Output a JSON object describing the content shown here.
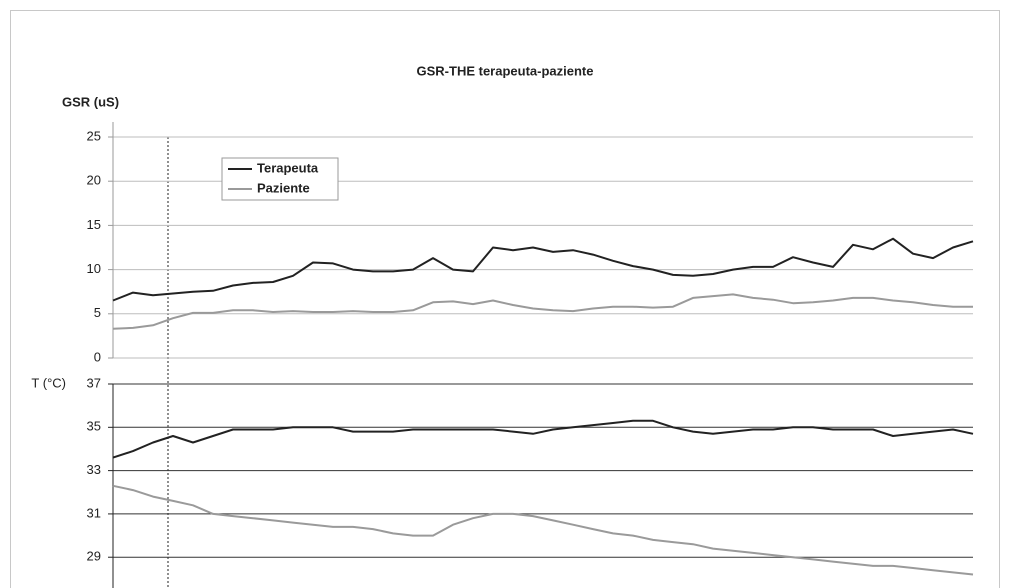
{
  "chart_data": [
    {
      "type": "line",
      "title": "GSR-THE terapeuta-paziente",
      "y_label": "GSR (uS)",
      "ylim": [
        0,
        25
      ],
      "yticks": [
        0,
        5,
        10,
        15,
        20,
        25
      ],
      "grid": true,
      "grid_color": "#bdbdbd",
      "legend": "upper-left",
      "series": [
        {
          "name": "Terapeuta",
          "color": "#222222",
          "values": [
            6.5,
            7.4,
            7.1,
            7.3,
            7.5,
            7.6,
            8.2,
            8.5,
            8.6,
            9.3,
            10.8,
            10.7,
            10.0,
            9.8,
            9.8,
            10.0,
            11.3,
            10.0,
            9.8,
            12.5,
            12.2,
            12.5,
            12.0,
            12.2,
            11.7,
            11.0,
            10.4,
            10.0,
            9.4,
            9.3,
            9.5,
            10.0,
            10.3,
            10.3,
            11.4,
            10.8,
            10.3,
            12.8,
            12.3,
            13.5,
            11.8,
            11.3,
            12.5,
            13.2
          ]
        },
        {
          "name": "Paziente",
          "color": "#9a9a9a",
          "values": [
            3.3,
            3.4,
            3.7,
            4.5,
            5.1,
            5.1,
            5.4,
            5.4,
            5.2,
            5.3,
            5.2,
            5.2,
            5.3,
            5.2,
            5.2,
            5.4,
            6.3,
            6.4,
            6.1,
            6.5,
            6.0,
            5.6,
            5.4,
            5.3,
            5.6,
            5.8,
            5.8,
            5.7,
            5.8,
            6.8,
            7.0,
            7.2,
            6.8,
            6.6,
            6.2,
            6.3,
            6.5,
            6.8,
            6.8,
            6.5,
            6.3,
            6.0,
            5.8,
            5.8
          ]
        }
      ]
    },
    {
      "type": "line",
      "y_label": "T (°C)",
      "ylim": [
        27.5,
        37
      ],
      "yticks": [
        29,
        31,
        33,
        35,
        37
      ],
      "grid": true,
      "grid_color": "#333333",
      "series": [
        {
          "color": "#222222",
          "values": [
            33.6,
            33.9,
            34.3,
            34.6,
            34.3,
            34.6,
            34.9,
            34.9,
            34.9,
            35.0,
            35.0,
            35.0,
            34.8,
            34.8,
            34.8,
            34.9,
            34.9,
            34.9,
            34.9,
            34.9,
            34.8,
            34.7,
            34.9,
            35.0,
            35.1,
            35.2,
            35.3,
            35.3,
            35.0,
            34.8,
            34.7,
            34.8,
            34.9,
            34.9,
            35.0,
            35.0,
            34.9,
            34.9,
            34.9,
            34.6,
            34.7,
            34.8,
            34.9,
            34.7
          ]
        },
        {
          "color": "#9a9a9a",
          "values": [
            32.3,
            32.1,
            31.8,
            31.6,
            31.4,
            31.0,
            30.9,
            30.8,
            30.7,
            30.6,
            30.5,
            30.4,
            30.4,
            30.3,
            30.1,
            30.0,
            30.0,
            30.5,
            30.8,
            31.0,
            31.0,
            30.9,
            30.7,
            30.5,
            30.3,
            30.1,
            30.0,
            29.8,
            29.7,
            29.6,
            29.4,
            29.3,
            29.2,
            29.1,
            29.0,
            28.9,
            28.8,
            28.7,
            28.6,
            28.6,
            28.5,
            28.4,
            28.3,
            28.2
          ]
        }
      ]
    }
  ]
}
